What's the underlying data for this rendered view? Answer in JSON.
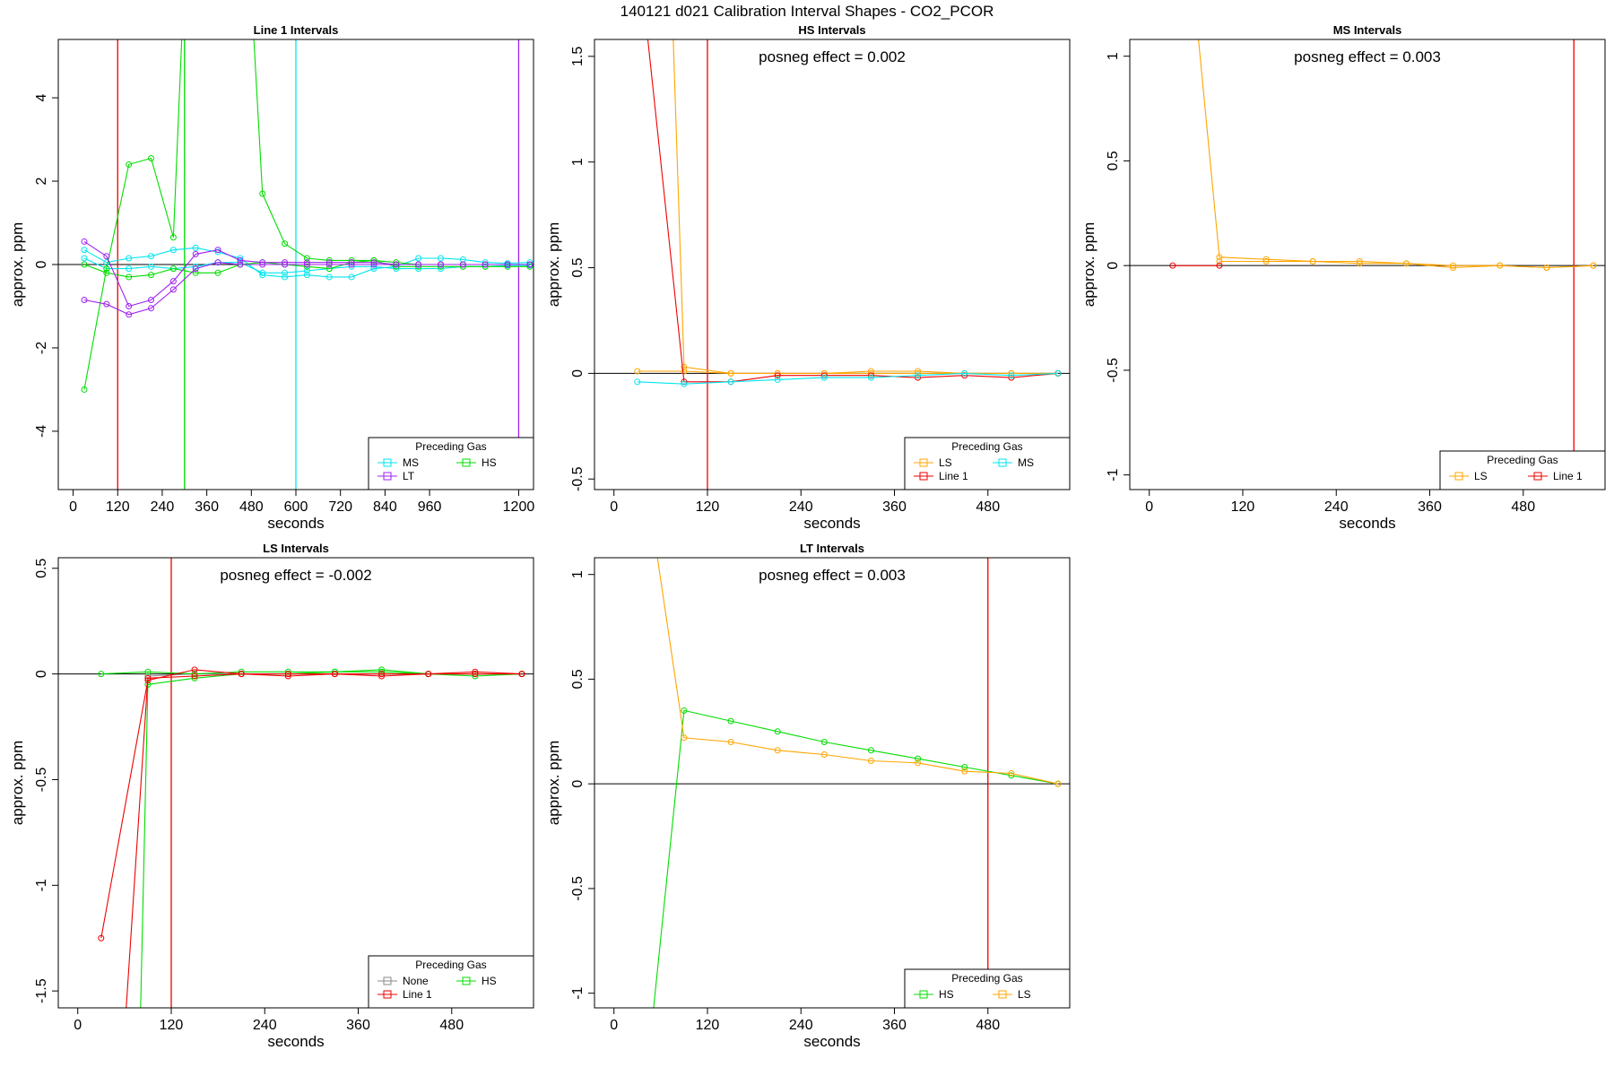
{
  "title": "140121   d021   Calibration Interval Shapes - CO2_PCOR",
  "colors": {
    "MS": "#00e5ee",
    "HS": "#00dd00",
    "LT": "#a020f0",
    "LS": "#ffa500",
    "Line 1": "#ee0000",
    "None": "#888888",
    "axis": "#000000"
  },
  "chart_data": [
    {
      "type": "line",
      "title": "Line 1 Intervals",
      "xlabel": "seconds",
      "ylabel": "approx. ppm",
      "xlim": [
        -40,
        1240
      ],
      "ylim": [
        -5.4,
        5.4
      ],
      "xticks": [
        0,
        120,
        240,
        360,
        480,
        600,
        720,
        840,
        960,
        1200
      ],
      "yticks": [
        -4,
        -2,
        0,
        2,
        4
      ],
      "annotation": "",
      "vlines": [
        {
          "x": 120,
          "gas": "Line 1"
        },
        {
          "x": 300,
          "gas": "HS"
        },
        {
          "x": 600,
          "gas": "MS"
        },
        {
          "x": 1200,
          "gas": "LT"
        }
      ],
      "legend": {
        "title": "Preceding Gas",
        "position": "bottom-right",
        "entries": [
          [
            "MS",
            "HS"
          ],
          [
            "LT"
          ]
        ]
      },
      "series": [
        {
          "name": "MS",
          "x": [
            30,
            90,
            150,
            210,
            270,
            330,
            390,
            450,
            510,
            570,
            630,
            690,
            750,
            810,
            870,
            930,
            990,
            1050,
            1110,
            1170,
            1230
          ],
          "y": [
            0.35,
            0.05,
            0.15,
            0.2,
            0.35,
            0.4,
            0.3,
            0.15,
            -0.25,
            -0.3,
            -0.25,
            -0.3,
            -0.3,
            -0.1,
            -0.05,
            0.15,
            0.15,
            0.12,
            0.05,
            0.03,
            0.05
          ]
        },
        {
          "name": "MS",
          "x": [
            30,
            90,
            150,
            210,
            270,
            330,
            390,
            450,
            510,
            570,
            630,
            690,
            750,
            810,
            870,
            930,
            990,
            1050,
            1110,
            1170,
            1230
          ],
          "y": [
            0.15,
            -0.1,
            -0.1,
            -0.05,
            -0.1,
            -0.05,
            0.05,
            0.05,
            -0.2,
            -0.2,
            -0.15,
            -0.1,
            -0.05,
            -0.05,
            -0.1,
            -0.1,
            -0.1,
            -0.05,
            -0.05,
            -0.02,
            -0.02
          ]
        },
        {
          "name": "HS",
          "x": [
            30,
            90,
            150,
            210,
            270,
            300,
            480,
            510,
            570,
            630,
            690,
            750,
            810,
            870,
            930,
            990,
            1050,
            1110,
            1170,
            1230
          ],
          "y": [
            -3.0,
            -0.1,
            2.4,
            2.55,
            0.65,
            7.0,
            6.5,
            1.7,
            0.5,
            0.15,
            0.1,
            0.1,
            0.1,
            0.05,
            0.0,
            0.0,
            0.0,
            0.0,
            0.0,
            0.0
          ]
        },
        {
          "name": "HS",
          "x": [
            30,
            90,
            150,
            210,
            270,
            330,
            390,
            450,
            510,
            570,
            630,
            690,
            750,
            810,
            870,
            930,
            990,
            1050,
            1110,
            1170,
            1230
          ],
          "y": [
            0.0,
            -0.2,
            -0.3,
            -0.25,
            -0.1,
            -0.2,
            -0.2,
            0.0,
            0.05,
            0.0,
            -0.05,
            -0.1,
            0.05,
            0.1,
            -0.05,
            -0.05,
            -0.05,
            -0.05,
            -0.05,
            -0.05,
            -0.05
          ]
        },
        {
          "name": "LT",
          "x": [
            30,
            90,
            150,
            210,
            270,
            330,
            390,
            450,
            510,
            570,
            630,
            690,
            750,
            810,
            870,
            930,
            990,
            1050,
            1110,
            1170,
            1230
          ],
          "y": [
            0.55,
            0.2,
            -1.0,
            -0.85,
            -0.4,
            0.25,
            0.35,
            0.1,
            0.05,
            0.05,
            0.05,
            0.05,
            0.05,
            0.05,
            0.0,
            0.0,
            0.0,
            0.0,
            0.0,
            0.0,
            0.0
          ]
        },
        {
          "name": "LT",
          "x": [
            30,
            90,
            150,
            210,
            270,
            330,
            390,
            450,
            510,
            570,
            630,
            690,
            750,
            810,
            870,
            930,
            990,
            1050,
            1110,
            1170,
            1230
          ],
          "y": [
            -0.85,
            -0.95,
            -1.2,
            -1.05,
            -0.6,
            -0.1,
            0.05,
            0.0,
            0.0,
            0.0,
            0.0,
            0.0,
            0.0,
            0.0,
            0.0,
            0.0,
            0.0,
            0.0,
            0.0,
            0.0,
            0.0
          ]
        }
      ]
    },
    {
      "type": "line",
      "title": "HS Intervals",
      "xlabel": "seconds",
      "ylabel": "approx. ppm",
      "xlim": [
        -25,
        585
      ],
      "ylim": [
        -0.55,
        1.58
      ],
      "xticks": [
        0,
        120,
        240,
        360,
        480
      ],
      "yticks": [
        -0.5,
        0.0,
        0.5,
        1.0,
        1.5
      ],
      "annotation": "posneg effect = 0.002",
      "vlines": [
        {
          "x": 120,
          "gas": "Line 1"
        }
      ],
      "legend": {
        "title": "Preceding Gas",
        "position": "bottom-right",
        "entries": [
          [
            "LS",
            "MS"
          ],
          [
            "Line 1"
          ]
        ]
      },
      "series": [
        {
          "name": "LS",
          "x": [
            30,
            90,
            150,
            210,
            270,
            330,
            390,
            450,
            510,
            570
          ],
          "y": [
            0.01,
            0.01,
            0.0,
            0.0,
            0.0,
            0.01,
            0.01,
            0.0,
            0.0,
            0.0
          ]
        },
        {
          "name": "LS",
          "x": [
            75,
            90,
            150,
            210,
            270,
            330,
            390,
            450,
            510,
            570
          ],
          "y": [
            1.7,
            0.03,
            0.0,
            0.0,
            0.0,
            0.0,
            0.0,
            0.0,
            0.0,
            0.0
          ]
        },
        {
          "name": "Line 1",
          "x": [
            40,
            90,
            150,
            210,
            270,
            330,
            390,
            450,
            510,
            570
          ],
          "y": [
            1.7,
            -0.04,
            -0.04,
            -0.01,
            -0.01,
            -0.01,
            -0.02,
            -0.01,
            -0.02,
            0.0
          ]
        },
        {
          "name": "MS",
          "x": [
            30,
            90,
            150,
            210,
            270,
            330,
            390,
            450,
            510,
            570
          ],
          "y": [
            -0.04,
            -0.05,
            -0.04,
            -0.03,
            -0.02,
            -0.02,
            -0.01,
            0.0,
            -0.01,
            0.0
          ]
        }
      ]
    },
    {
      "type": "line",
      "title": "MS Intervals",
      "xlabel": "seconds",
      "ylabel": "approx. ppm",
      "xlim": [
        -25,
        585
      ],
      "ylim": [
        -1.07,
        1.08
      ],
      "xticks": [
        0,
        120,
        240,
        360,
        480
      ],
      "yticks": [
        -1.0,
        -0.5,
        0.0,
        0.5,
        1.0
      ],
      "annotation": "posneg effect = 0.003",
      "vlines": [
        {
          "x": 545,
          "gas": "Line 1"
        }
      ],
      "legend": {
        "title": "Preceding Gas",
        "position": "bottom-right",
        "entries": [
          [
            "LS",
            "Line 1"
          ]
        ]
      },
      "series": [
        {
          "name": "LS",
          "x": [
            60,
            90,
            150,
            210,
            270,
            330,
            390,
            450,
            510,
            570
          ],
          "y": [
            1.2,
            0.04,
            0.03,
            0.02,
            0.02,
            0.01,
            0.0,
            0.0,
            -0.01,
            0.0
          ]
        },
        {
          "name": "LS",
          "x": [
            90,
            150,
            210,
            270,
            330,
            390,
            450,
            510,
            570
          ],
          "y": [
            0.02,
            0.02,
            0.02,
            0.01,
            0.01,
            -0.01,
            0.0,
            -0.01,
            0.0
          ]
        },
        {
          "name": "Line 1",
          "x": [
            30,
            90
          ],
          "y": [
            0.0,
            0.0
          ]
        }
      ]
    },
    {
      "type": "line",
      "title": "LS Intervals",
      "xlabel": "seconds",
      "ylabel": "approx. ppm",
      "xlim": [
        -25,
        585
      ],
      "ylim": [
        -1.58,
        0.55
      ],
      "xticks": [
        0,
        120,
        240,
        360,
        480
      ],
      "yticks": [
        -1.5,
        -1.0,
        -0.5,
        0.0,
        0.5
      ],
      "annotation": "posneg effect = -0.002",
      "vlines": [
        {
          "x": 120,
          "gas": "Line 1"
        }
      ],
      "legend": {
        "title": "Preceding Gas",
        "position": "bottom-right",
        "entries": [
          [
            "None",
            "HS"
          ],
          [
            "Line 1"
          ]
        ]
      },
      "series": [
        {
          "name": "None",
          "x": [
            90,
            150,
            210,
            270,
            330,
            390,
            450,
            510,
            570
          ],
          "y": [
            -0.01,
            0.0,
            0.0,
            0.0,
            0.0,
            0.0,
            0.0,
            0.0,
            0.0
          ]
        },
        {
          "name": "HS",
          "x": [
            30,
            90,
            150,
            210,
            270,
            330,
            390,
            450,
            510,
            570
          ],
          "y": [
            0.0,
            0.01,
            0.0,
            0.01,
            0.01,
            0.01,
            0.02,
            0.0,
            0.0,
            0.0
          ]
        },
        {
          "name": "HS",
          "x": [
            80,
            90,
            150,
            210,
            270,
            330,
            390,
            450,
            510,
            570
          ],
          "y": [
            -1.7,
            -0.05,
            -0.02,
            0.0,
            0.0,
            0.01,
            0.01,
            0.0,
            -0.01,
            0.0
          ]
        },
        {
          "name": "Line 1",
          "x": [
            30,
            90,
            150,
            210,
            270,
            330,
            390,
            450,
            510,
            570
          ],
          "y": [
            -1.25,
            -0.03,
            0.02,
            0.0,
            -0.01,
            0.0,
            -0.01,
            0.0,
            0.01,
            0.0
          ]
        },
        {
          "name": "Line 1",
          "x": [
            60,
            90,
            150,
            210,
            270,
            330,
            390,
            450,
            510,
            570
          ],
          "y": [
            -1.7,
            -0.02,
            -0.01,
            0.0,
            0.0,
            0.0,
            0.0,
            0.0,
            0.0,
            0.0
          ]
        }
      ]
    },
    {
      "type": "line",
      "title": "LT Intervals",
      "xlabel": "seconds",
      "ylabel": "approx. ppm",
      "xlim": [
        -25,
        585
      ],
      "ylim": [
        -1.07,
        1.08
      ],
      "xticks": [
        0,
        120,
        240,
        360,
        480
      ],
      "yticks": [
        -1.0,
        -0.5,
        0.0,
        0.5,
        1.0
      ],
      "annotation": "posneg effect = 0.003",
      "vlines": [
        {
          "x": 480,
          "gas": "Line 1"
        }
      ],
      "legend": {
        "title": "Preceding Gas",
        "position": "bottom-right",
        "entries": [
          [
            "HS",
            "LS"
          ]
        ]
      },
      "series": [
        {
          "name": "HS",
          "x": [
            50,
            90,
            150,
            210,
            270,
            330,
            390,
            450,
            510,
            570
          ],
          "y": [
            -1.1,
            0.35,
            0.3,
            0.25,
            0.2,
            0.16,
            0.12,
            0.08,
            0.04,
            0.0
          ]
        },
        {
          "name": "LS",
          "x": [
            55,
            90,
            150,
            210,
            270,
            330,
            390,
            450,
            510,
            570
          ],
          "y": [
            1.1,
            0.22,
            0.2,
            0.16,
            0.14,
            0.11,
            0.1,
            0.06,
            0.05,
            0.0
          ]
        }
      ]
    }
  ]
}
